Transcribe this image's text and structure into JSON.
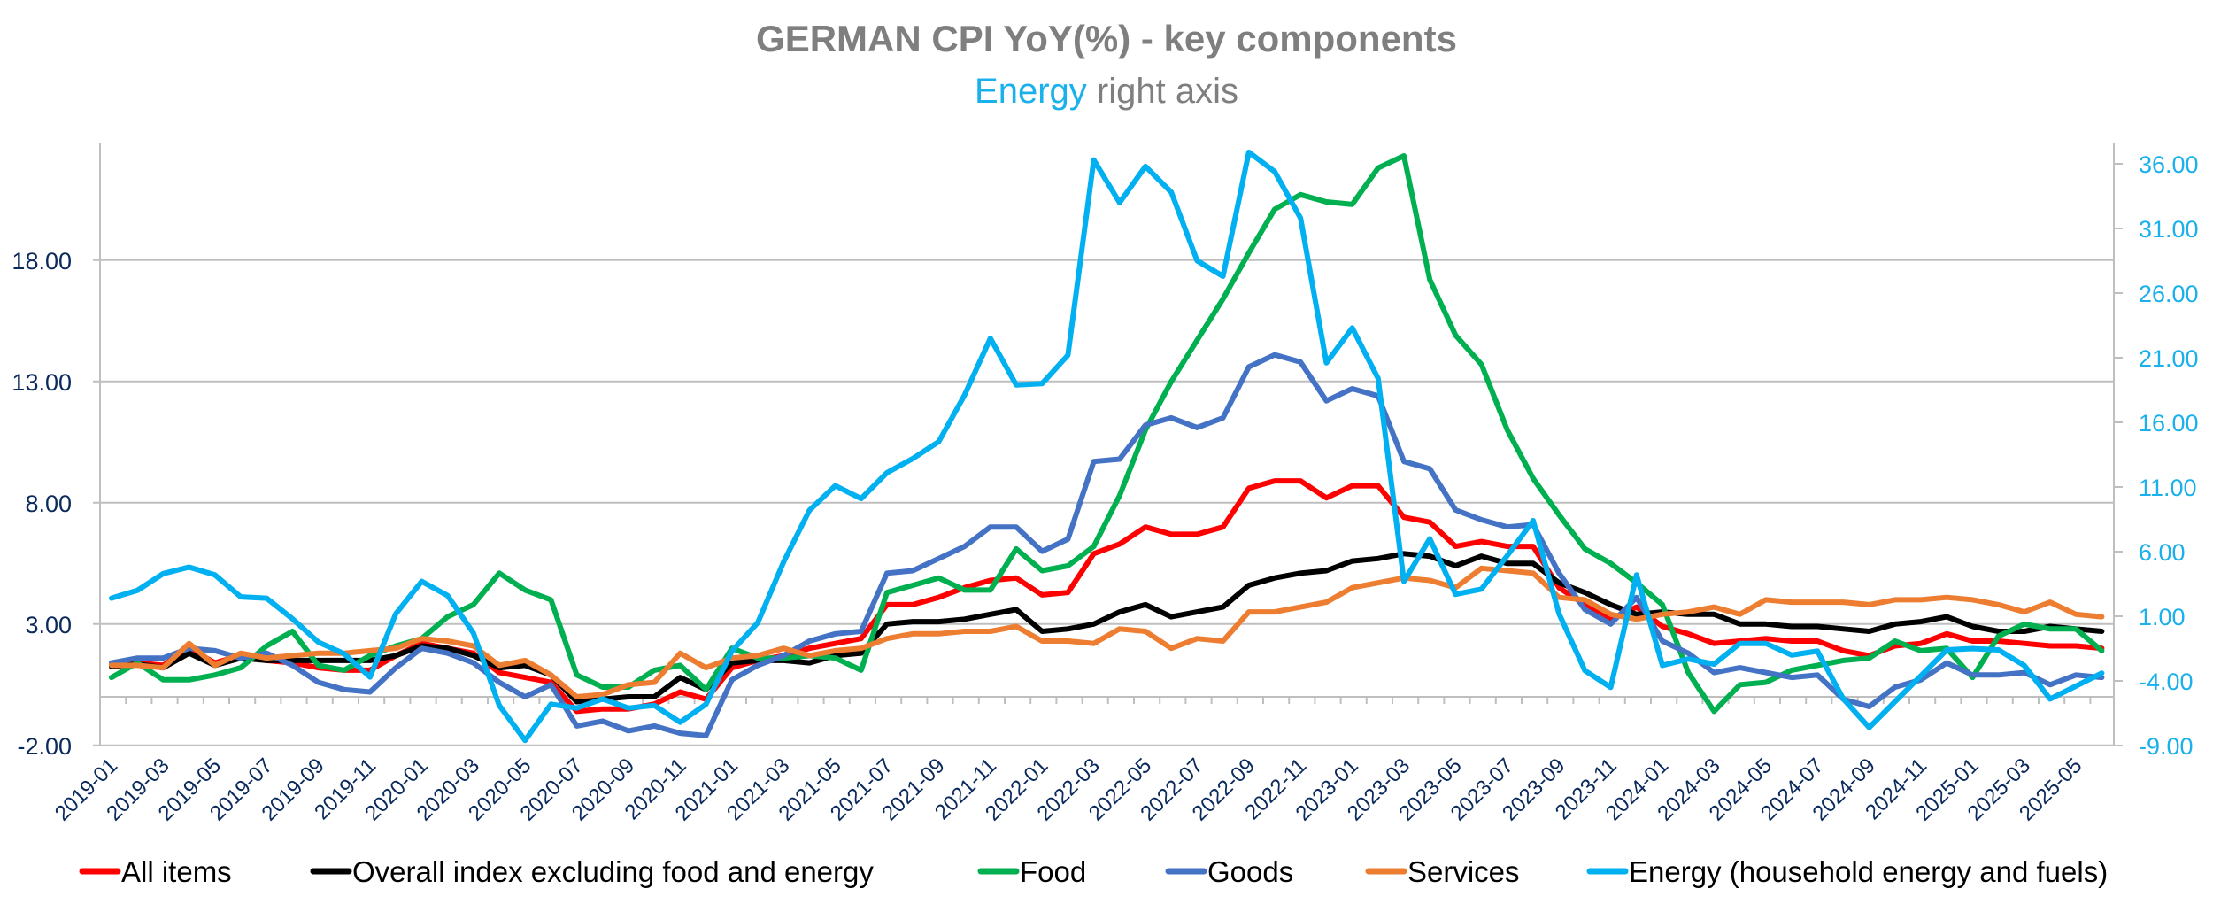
{
  "chart_data": {
    "type": "line",
    "title": "GERMAN CPI YoY(%) - key components",
    "subtitle": {
      "highlight": "Energy",
      "rest": "right axis",
      "highlight_color": "#1ab0ec"
    },
    "xlabel": "",
    "ylabel": "",
    "grid": true,
    "legend_position": "bottom",
    "y_left": {
      "range": [
        -2,
        22.8
      ],
      "ticks": [
        -2,
        3,
        8,
        13,
        18
      ],
      "tick_labels": [
        "-2.00",
        "3.00",
        "8.00",
        "13.00",
        "18.00"
      ],
      "label_color": "#0b2a5c"
    },
    "y_right": {
      "range": [
        -9,
        37.6
      ],
      "ticks": [
        -9,
        -4,
        1,
        6,
        11,
        16,
        21,
        26,
        31,
        36
      ],
      "tick_labels": [
        "-9.00",
        "-4.00",
        "1.00",
        "6.00",
        "11.00",
        "16.00",
        "21.00",
        "26.00",
        "31.00",
        "36.00"
      ],
      "label_color": "#1ab0ec"
    },
    "x": [
      "2019-01",
      "2019-02",
      "2019-03",
      "2019-04",
      "2019-05",
      "2019-06",
      "2019-07",
      "2019-08",
      "2019-09",
      "2019-10",
      "2019-11",
      "2019-12",
      "2020-01",
      "2020-02",
      "2020-03",
      "2020-04",
      "2020-05",
      "2020-06",
      "2020-07",
      "2020-08",
      "2020-09",
      "2020-10",
      "2020-11",
      "2020-12",
      "2021-01",
      "2021-02",
      "2021-03",
      "2021-04",
      "2021-05",
      "2021-06",
      "2021-07",
      "2021-08",
      "2021-09",
      "2021-10",
      "2021-11",
      "2021-12",
      "2022-01",
      "2022-02",
      "2022-03",
      "2022-04",
      "2022-05",
      "2022-06",
      "2022-07",
      "2022-08",
      "2022-09",
      "2022-10",
      "2022-11",
      "2022-12",
      "2023-01",
      "2023-02",
      "2023-03",
      "2023-04",
      "2023-05",
      "2023-06",
      "2023-07",
      "2023-08",
      "2023-09",
      "2023-10",
      "2023-11",
      "2023-12",
      "2024-01",
      "2024-02",
      "2024-03",
      "2024-04",
      "2024-05",
      "2024-06",
      "2024-07",
      "2024-08",
      "2024-09",
      "2024-10",
      "2024-11",
      "2024-12",
      "2025-01",
      "2025-02",
      "2025-03",
      "2025-04",
      "2025-05",
      "2025-06"
    ],
    "x_tick_labels": [
      "2019-01",
      "2019-03",
      "2019-05",
      "2019-07",
      "2019-09",
      "2019-11",
      "2020-01",
      "2020-03",
      "2020-05",
      "2020-07",
      "2020-09",
      "2020-11",
      "2021-01",
      "2021-03",
      "2021-05",
      "2021-07",
      "2021-09",
      "2021-11",
      "2022-01",
      "2022-03",
      "2022-05",
      "2022-07",
      "2022-09",
      "2022-11",
      "2023-01",
      "2023-03",
      "2023-05",
      "2023-07",
      "2023-09",
      "2023-11",
      "2024-01",
      "2024-03",
      "2024-05",
      "2024-07",
      "2024-09",
      "2024-11",
      "2025-01",
      "2025-03",
      "2025-05"
    ],
    "series": [
      {
        "name": "All items",
        "color": "#ff0000",
        "axis": "left",
        "values": [
          1.3,
          1.4,
          1.3,
          2.0,
          1.4,
          1.7,
          1.5,
          1.4,
          1.2,
          1.1,
          1.1,
          1.7,
          2.2,
          2.0,
          1.8,
          1.0,
          0.8,
          0.6,
          -0.6,
          -0.5,
          -0.5,
          -0.3,
          0.2,
          -0.1,
          1.2,
          1.5,
          1.7,
          2.0,
          2.2,
          2.4,
          3.8,
          3.8,
          4.1,
          4.5,
          4.8,
          4.9,
          4.2,
          4.3,
          5.9,
          6.3,
          7.0,
          6.7,
          6.7,
          7.0,
          8.6,
          8.9,
          8.9,
          8.2,
          8.7,
          8.7,
          7.4,
          7.2,
          6.2,
          6.4,
          6.2,
          6.2,
          4.5,
          3.8,
          3.2,
          3.7,
          2.9,
          2.6,
          2.2,
          2.3,
          2.4,
          2.3,
          2.3,
          1.9,
          1.7,
          2.1,
          2.2,
          2.6,
          2.3,
          2.3,
          2.2,
          2.1,
          2.1,
          2.0
        ]
      },
      {
        "name": "Overall index excluding food and energy",
        "color": "#000000",
        "axis": "left",
        "values": [
          1.25,
          1.35,
          1.2,
          1.8,
          1.3,
          1.6,
          1.5,
          1.5,
          1.5,
          1.5,
          1.5,
          1.7,
          2.1,
          2.0,
          1.7,
          1.2,
          1.3,
          0.9,
          -0.2,
          -0.1,
          0.0,
          0.0,
          0.8,
          0.3,
          1.4,
          1.5,
          1.5,
          1.4,
          1.7,
          1.8,
          3.0,
          3.1,
          3.1,
          3.2,
          3.4,
          3.6,
          2.7,
          2.8,
          3.0,
          3.5,
          3.8,
          3.3,
          3.5,
          3.7,
          4.6,
          4.9,
          5.1,
          5.2,
          5.6,
          5.7,
          5.9,
          5.8,
          5.4,
          5.8,
          5.5,
          5.5,
          4.7,
          4.3,
          3.8,
          3.4,
          3.5,
          3.4,
          3.4,
          3.0,
          3.0,
          2.9,
          2.9,
          2.8,
          2.7,
          3.0,
          3.1,
          3.3,
          2.9,
          2.7,
          2.7,
          2.9,
          2.8,
          2.7
        ]
      },
      {
        "name": "Food",
        "color": "#00b050",
        "axis": "left",
        "values": [
          0.8,
          1.4,
          0.7,
          0.7,
          0.9,
          1.2,
          2.1,
          2.7,
          1.3,
          1.1,
          1.7,
          2.1,
          2.4,
          3.3,
          3.8,
          5.1,
          4.4,
          4.0,
          0.9,
          0.4,
          0.4,
          1.1,
          1.3,
          0.3,
          2.0,
          1.6,
          1.6,
          1.7,
          1.6,
          1.1,
          4.3,
          4.6,
          4.9,
          4.4,
          4.4,
          6.1,
          5.2,
          5.4,
          6.2,
          8.3,
          11.0,
          13.0,
          14.7,
          16.4,
          18.3,
          20.1,
          20.7,
          20.4,
          20.3,
          21.8,
          22.3,
          17.2,
          14.9,
          13.7,
          11.0,
          9.0,
          7.5,
          6.1,
          5.5,
          4.7,
          3.8,
          1.0,
          -0.6,
          0.5,
          0.6,
          1.1,
          1.3,
          1.5,
          1.6,
          2.3,
          1.9,
          2.0,
          0.8,
          2.5,
          3.0,
          2.8,
          2.8,
          1.9
        ]
      },
      {
        "name": "Goods",
        "color": "#4472c4",
        "axis": "left",
        "values": [
          1.4,
          1.6,
          1.6,
          2.0,
          1.9,
          1.6,
          1.8,
          1.3,
          0.6,
          0.3,
          0.2,
          1.2,
          2.0,
          1.8,
          1.4,
          0.6,
          0.0,
          0.5,
          -1.2,
          -1.0,
          -1.4,
          -1.2,
          -1.5,
          -1.6,
          0.7,
          1.3,
          1.7,
          2.3,
          2.6,
          2.7,
          5.1,
          5.2,
          5.7,
          6.2,
          7.0,
          7.0,
          6.0,
          6.5,
          9.7,
          9.8,
          11.2,
          11.5,
          11.1,
          11.5,
          13.6,
          14.1,
          13.8,
          12.2,
          12.7,
          12.4,
          9.7,
          9.4,
          7.7,
          7.3,
          7.0,
          7.1,
          5.1,
          3.6,
          3.0,
          4.1,
          2.3,
          1.8,
          1.0,
          1.2,
          1.0,
          0.8,
          0.9,
          -0.1,
          -0.4,
          0.4,
          0.7,
          1.4,
          0.9,
          0.9,
          1.0,
          0.5,
          0.9,
          0.8
        ]
      },
      {
        "name": "Services",
        "color": "#ed7d31",
        "axis": "left",
        "values": [
          1.3,
          1.3,
          1.2,
          2.2,
          1.3,
          1.8,
          1.6,
          1.7,
          1.8,
          1.8,
          1.9,
          2.0,
          2.4,
          2.3,
          2.1,
          1.3,
          1.5,
          0.9,
          0.0,
          0.1,
          0.5,
          0.6,
          1.8,
          1.2,
          1.6,
          1.7,
          2.0,
          1.7,
          1.9,
          2.0,
          2.4,
          2.6,
          2.6,
          2.7,
          2.7,
          2.9,
          2.3,
          2.3,
          2.2,
          2.8,
          2.7,
          2.0,
          2.4,
          2.3,
          3.5,
          3.5,
          3.7,
          3.9,
          4.5,
          4.7,
          4.9,
          4.8,
          4.5,
          5.3,
          5.2,
          5.1,
          4.1,
          4.0,
          3.4,
          3.2,
          3.4,
          3.5,
          3.7,
          3.4,
          4.0,
          3.9,
          3.9,
          3.9,
          3.8,
          4.0,
          4.0,
          4.1,
          4.0,
          3.8,
          3.5,
          3.9,
          3.4,
          3.3
        ]
      },
      {
        "name": "Energy (household energy and fuels)",
        "color": "#00b0f0",
        "axis": "right",
        "values": [
          2.4,
          3.0,
          4.3,
          4.8,
          4.2,
          2.5,
          2.4,
          0.8,
          -1.0,
          -1.9,
          -3.7,
          1.2,
          3.7,
          2.6,
          -0.3,
          -5.9,
          -8.6,
          -5.8,
          -6.1,
          -5.4,
          -6.1,
          -5.9,
          -7.2,
          -5.8,
          -1.7,
          0.5,
          5.2,
          9.2,
          11.1,
          10.1,
          12.1,
          13.2,
          14.5,
          18.1,
          22.5,
          18.9,
          19.0,
          21.2,
          36.3,
          33.0,
          35.8,
          33.8,
          28.5,
          27.3,
          36.9,
          35.4,
          31.8,
          20.6,
          23.3,
          19.4,
          3.7,
          7.0,
          2.7,
          3.1,
          5.7,
          8.4,
          1.2,
          -3.2,
          -4.5,
          4.2,
          -2.8,
          -2.3,
          -2.7,
          -1.1,
          -1.1,
          -2.0,
          -1.7,
          -5.4,
          -7.6,
          -5.6,
          -3.6,
          -1.6,
          -1.5,
          -1.6,
          -2.8,
          -5.4,
          -4.4,
          -3.4
        ]
      }
    ]
  }
}
